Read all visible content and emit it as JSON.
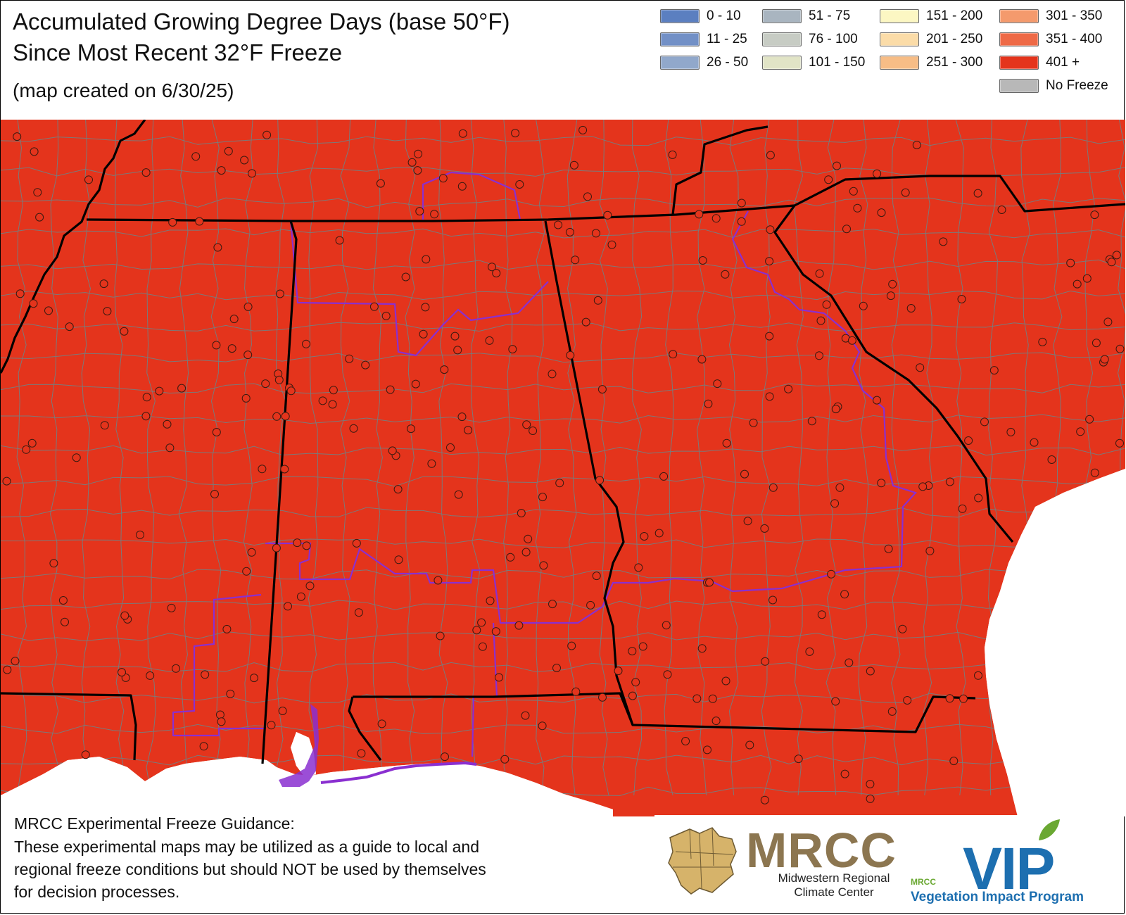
{
  "title": {
    "line1": "Accumulated Growing Degree Days (base 50°F)",
    "line2": "Since Most Recent 32°F Freeze",
    "line3": "(map created on 6/30/25)"
  },
  "legend": [
    {
      "label": "0 - 10",
      "color": "#5b7fc0"
    },
    {
      "label": "11 - 25",
      "color": "#7290c6"
    },
    {
      "label": "26 - 50",
      "color": "#91a8cb"
    },
    {
      "label": "51 - 75",
      "color": "#a9b5c0"
    },
    {
      "label": "76 - 100",
      "color": "#c7ccc4"
    },
    {
      "label": "101 - 150",
      "color": "#e1e4c6"
    },
    {
      "label": "151 - 200",
      "color": "#fcf7c3"
    },
    {
      "label": "201 - 250",
      "color": "#fbdca8"
    },
    {
      "label": "251 - 300",
      "color": "#f7bd86"
    },
    {
      "label": "301 - 350",
      "color": "#f49a6d"
    },
    {
      "label": "351 - 400",
      "color": "#ee6a47"
    },
    {
      "label": "401 +",
      "color": "#e4341c"
    },
    {
      "label": "No Freeze",
      "color": "#b8b8b8"
    }
  ],
  "map": {
    "fill_category": "401 +",
    "fill_color": "#e4341c",
    "county_line_color": "#7a7a7a",
    "state_line_color": "#000000",
    "region_line_color": "#8a2fd0",
    "station_color": "#e4341c"
  },
  "disclaimer": {
    "heading": "MRCC Experimental Freeze Guidance:",
    "lines": [
      "These experimental maps may be utilized as a guide to local and",
      "regional freeze conditions but should NOT be used by themselves",
      "for decision processes."
    ]
  },
  "logos": {
    "mrcc": "MRCC",
    "mrcc_sub1": "Midwestern Regional",
    "mrcc_sub2": "Climate Center",
    "vip": "VIP",
    "vip_mini": "MRCC",
    "vip_sub": "Vegetation Impact Program"
  }
}
